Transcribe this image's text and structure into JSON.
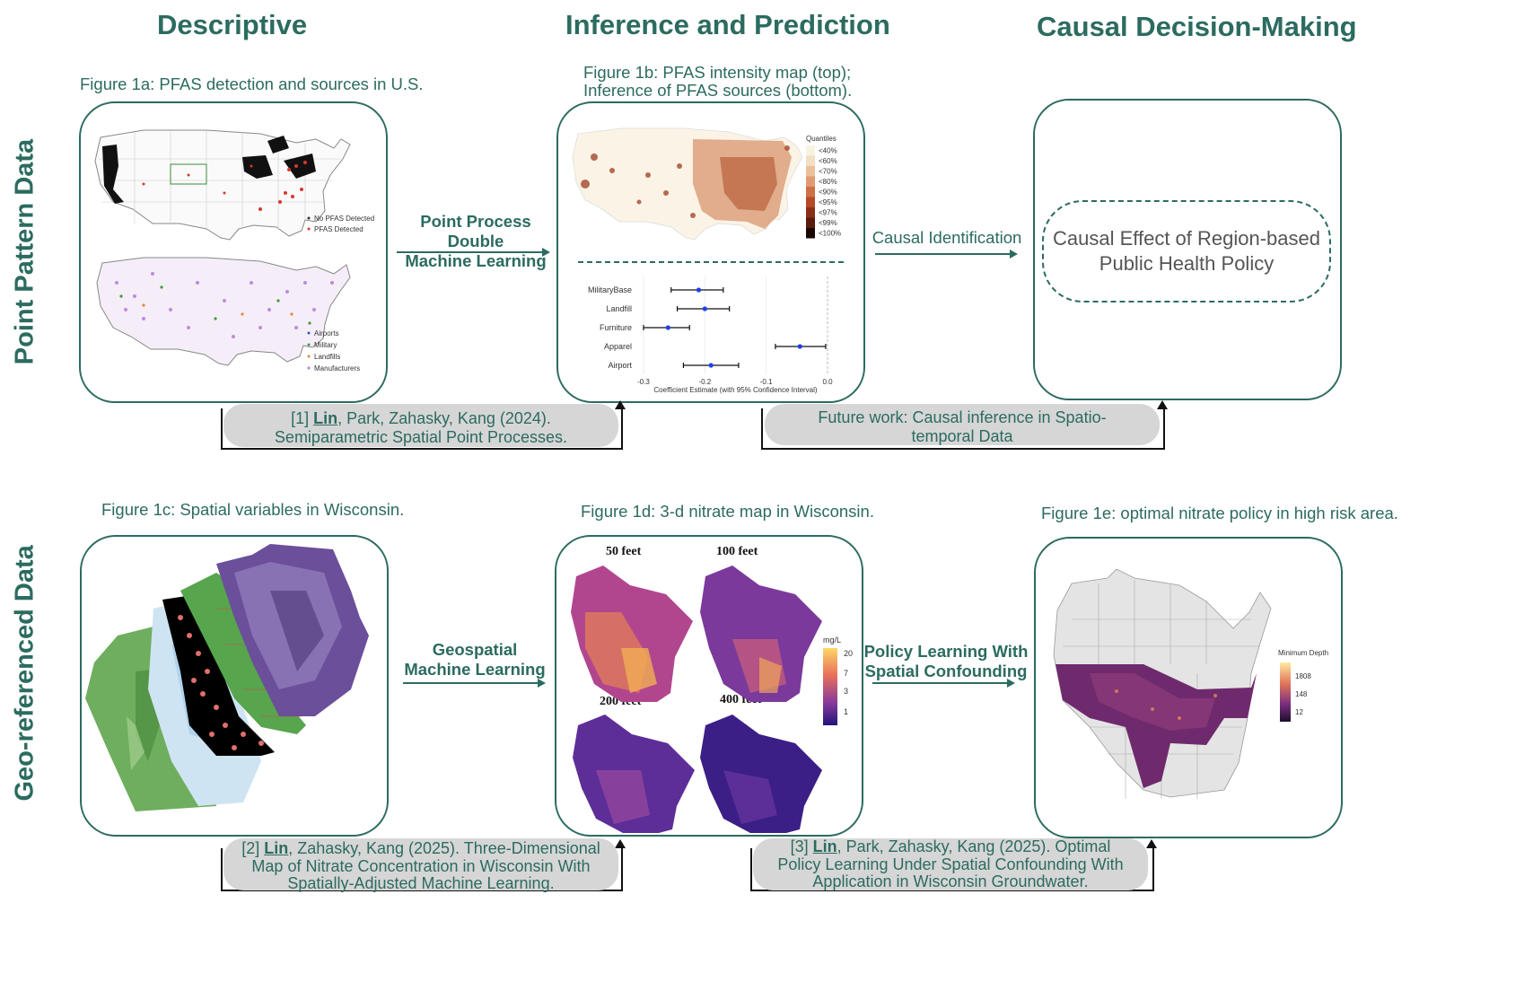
{
  "columns": {
    "descriptive": "Descriptive",
    "inference": "Inference and Prediction",
    "causal": "Causal Decision-Making"
  },
  "rows": {
    "point_pattern": "Point Pattern Data",
    "geo_referenced": "Geo-referenced Data"
  },
  "fig1a": {
    "caption": "Figure 1a: PFAS detection and sources in U.S.",
    "legend_top": [
      "No PFAS Detected",
      "PFAS Detected"
    ],
    "legend_bottom": [
      "Airports",
      "Military",
      "Landfills",
      "Manufacturers"
    ]
  },
  "fig1b": {
    "caption_line1": "Figure 1b: PFAS intensity map (top);",
    "caption_line2": "Inference of PFAS sources (bottom).",
    "legend_title": "Quantiles",
    "legend_items": [
      "<40%",
      "<60%",
      "<70%",
      "<80%",
      "<90%",
      "<95%",
      "<97%",
      "<99%",
      "<100%"
    ],
    "legend_colors": [
      "#f7f3e3",
      "#f3dfc2",
      "#ecc09a",
      "#e19b72",
      "#cf6f45",
      "#b54a27",
      "#8a2e17",
      "#5a1a0c",
      "#1a0703"
    ],
    "xlabel": "Coefficient Estimate (with 95% Confidence Interval)",
    "xticks": [
      "-0.3",
      "-0.2",
      "-0.1",
      "0.0"
    ]
  },
  "chart_data": {
    "type": "scatter",
    "title": "Inference of PFAS sources",
    "xlabel": "Coefficient Estimate (with 95% Confidence Interval)",
    "ylabel": "",
    "xlim": [
      -0.3,
      0.0
    ],
    "x_ticks": [
      -0.3,
      -0.2,
      -0.1,
      0.0
    ],
    "series": [
      {
        "name": "MilitaryBase",
        "estimate": -0.21,
        "lower": -0.255,
        "upper": -0.17
      },
      {
        "name": "Landfill",
        "estimate": -0.2,
        "lower": -0.245,
        "upper": -0.16
      },
      {
        "name": "Furniture",
        "estimate": -0.26,
        "lower": -0.3,
        "upper": -0.225
      },
      {
        "name": "Apparel",
        "estimate": -0.045,
        "lower": -0.085,
        "upper": -0.003
      },
      {
        "name": "Airport",
        "estimate": -0.19,
        "lower": -0.235,
        "upper": -0.145
      }
    ]
  },
  "arrows": {
    "pp_dml_line1": "Point Process Double",
    "pp_dml_line2": "Machine Learning",
    "causal_id": "Causal Identification",
    "geo_ml_line1": "Geospatial",
    "geo_ml_line2": "Machine Learning",
    "policy_line1": "Policy Learning With",
    "policy_line2": "Spatial Confounding"
  },
  "causal_box": {
    "line1": "Causal Effect of Region-based",
    "line2": "Public Health Policy"
  },
  "refs": {
    "ref1_pre": "[1] ",
    "ref1_author": "Lin",
    "ref1_line1": ", Park, Zahasky, Kang (2024).",
    "ref1_line2": "Semiparametric Spatial Point Processes.",
    "future_line1": "Future work: Causal inference in Spatio-",
    "future_line2": "temporal Data",
    "ref2_pre": "[2] ",
    "ref2_author": "Lin",
    "ref2_line1": ", Zahasky, Kang (2025). Three-Dimensional",
    "ref2_line2": "Map of Nitrate Concentration in Wisconsin With",
    "ref2_line3": "Spatially-Adjusted Machine Learning.",
    "ref3_pre": "[3] ",
    "ref3_author": "Lin",
    "ref3_line1": ", Park, Zahasky, Kang (2025). Optimal",
    "ref3_line2": "Policy Learning Under Spatial Confounding With",
    "ref3_line3": "Application in Wisconsin Groundwater."
  },
  "fig1c": {
    "caption": "Figure 1c: Spatial variables in Wisconsin."
  },
  "fig1d": {
    "caption": "Figure 1d: 3-d nitrate map in Wisconsin.",
    "depths": [
      "50 feet",
      "100 feet",
      "200 feet",
      "400 feet"
    ],
    "unit": "mg/L",
    "scale_ticks": [
      "20",
      "7",
      "3",
      "1"
    ]
  },
  "fig1e": {
    "caption": "Figure 1e: optimal nitrate policy in high risk area.",
    "legend_title": "Minimum Depth",
    "scale_ticks": [
      "1808",
      "148",
      "12"
    ]
  },
  "colors": {
    "theme": "#2c6b60",
    "ref_bg": "#d6d6d6",
    "ci_point": "#1f3ff0"
  }
}
